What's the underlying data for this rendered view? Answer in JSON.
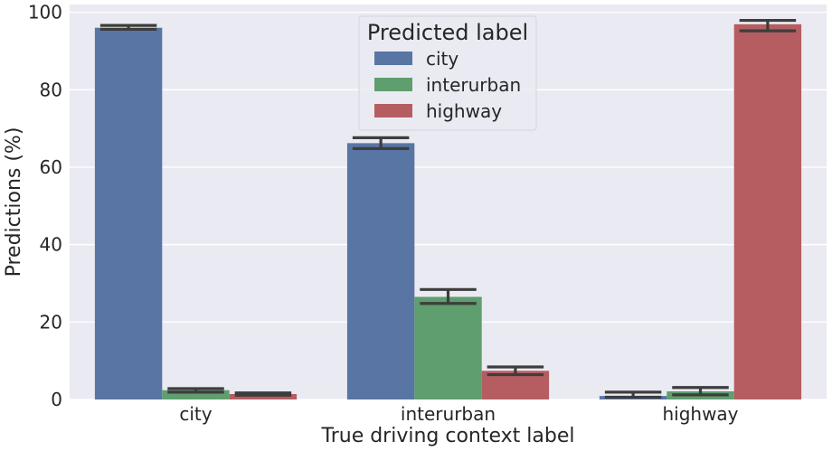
{
  "chart_data": {
    "type": "bar",
    "title": "",
    "xlabel": "True driving context label",
    "ylabel": "Predictions (%)",
    "categories": [
      "city",
      "interurban",
      "highway"
    ],
    "ylim": [
      0,
      102
    ],
    "yticks": [
      0,
      20,
      40,
      60,
      80,
      100
    ],
    "grid": true,
    "legend": {
      "title": "Predicted label",
      "placement": "top-center"
    },
    "series": [
      {
        "name": "city",
        "color": "#5875a4",
        "values": [
          96.0,
          66.2,
          0.9
        ],
        "err_low": [
          95.6,
          64.8,
          0.6
        ],
        "err_high": [
          96.6,
          67.6,
          1.9
        ]
      },
      {
        "name": "interurban",
        "color": "#5f9e6e",
        "values": [
          2.4,
          26.5,
          2.1
        ],
        "err_low": [
          1.9,
          24.8,
          1.2
        ],
        "err_high": [
          2.8,
          28.4,
          3.1
        ]
      },
      {
        "name": "highway",
        "color": "#b55d60",
        "values": [
          1.4,
          7.4,
          96.9
        ],
        "err_low": [
          1.1,
          6.4,
          95.2
        ],
        "err_high": [
          1.7,
          8.4,
          97.9
        ]
      }
    ]
  }
}
